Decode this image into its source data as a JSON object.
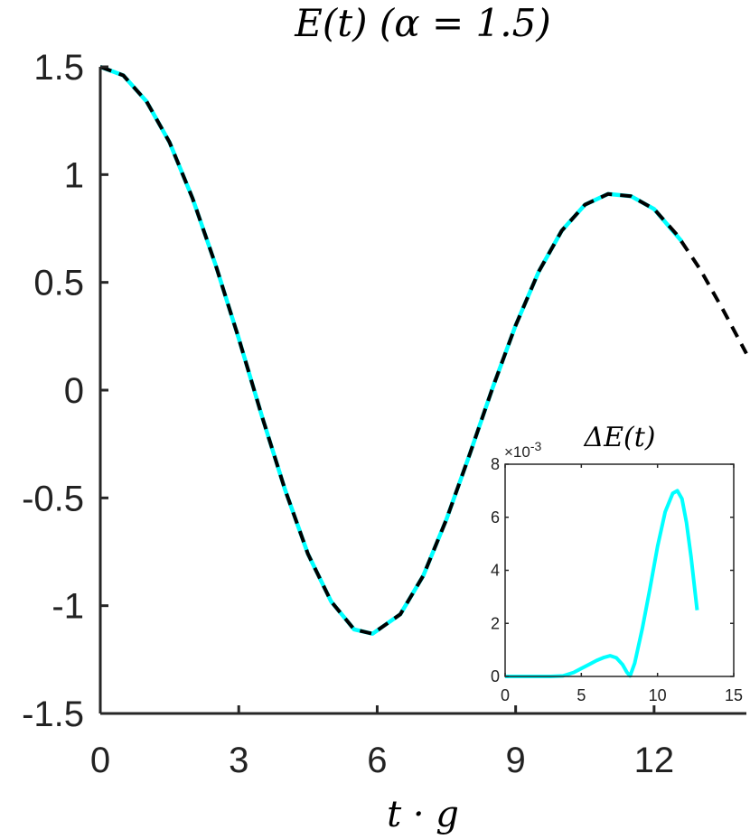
{
  "chart_data": [
    {
      "type": "line",
      "title": "E(t) (α = 1.5)",
      "xlabel": "t · g",
      "ylabel": "",
      "xlim": [
        0,
        14
      ],
      "ylim": [
        -1.5,
        1.5
      ],
      "xticks": [
        "0",
        "3",
        "6",
        "9",
        "12"
      ],
      "xtick_values": [
        0,
        3,
        6,
        9,
        12
      ],
      "yticks": [
        "1.5",
        "1",
        "0.5",
        "0",
        "-0.5",
        "-1",
        "-1.5"
      ],
      "ytick_values": [
        1.5,
        1,
        0.5,
        0,
        -0.5,
        -1,
        -1.5
      ],
      "grid": false,
      "series": [
        {
          "color": "#00ffff",
          "style": "solid",
          "x": [
            0,
            0.5,
            1,
            1.5,
            2,
            2.5,
            3,
            3.5,
            4,
            4.5,
            5,
            5.5,
            5.9,
            6.5,
            7,
            7.5,
            8,
            8.5,
            9,
            9.5,
            10,
            10.5,
            11,
            11.5,
            12,
            12.6
          ],
          "y": [
            1.5,
            1.46,
            1.34,
            1.15,
            0.89,
            0.58,
            0.24,
            -0.12,
            -0.46,
            -0.76,
            -0.98,
            -1.11,
            -1.13,
            -1.04,
            -0.86,
            -0.6,
            -0.3,
            0.01,
            0.3,
            0.55,
            0.74,
            0.86,
            0.91,
            0.9,
            0.84,
            0.69
          ]
        },
        {
          "color": "#000000",
          "style": "dashed",
          "x": [
            0,
            0.5,
            1,
            1.5,
            2,
            2.5,
            3,
            3.5,
            4,
            4.5,
            5,
            5.5,
            5.9,
            6.5,
            7,
            7.5,
            8,
            8.5,
            9,
            9.5,
            10,
            10.5,
            11,
            11.5,
            12,
            12.5,
            13,
            13.5,
            14
          ],
          "y": [
            1.5,
            1.46,
            1.34,
            1.15,
            0.89,
            0.58,
            0.24,
            -0.12,
            -0.46,
            -0.76,
            -0.98,
            -1.11,
            -1.13,
            -1.04,
            -0.86,
            -0.6,
            -0.3,
            0.01,
            0.3,
            0.55,
            0.74,
            0.86,
            0.91,
            0.9,
            0.84,
            0.72,
            0.56,
            0.37,
            0.17
          ]
        }
      ]
    },
    {
      "type": "line",
      "title": "ΔE(t)",
      "xlabel": "",
      "ylabel": "",
      "xlim": [
        0,
        15
      ],
      "ylim": [
        0,
        8
      ],
      "xticks": [
        "0",
        "5",
        "10",
        "15"
      ],
      "xtick_values": [
        0,
        5,
        10,
        15
      ],
      "yticks": [
        "0",
        "2",
        "4",
        "6",
        "8"
      ],
      "ytick_values": [
        0,
        2,
        4,
        6,
        8
      ],
      "y_exponent": "×10-3",
      "grid": false,
      "series": [
        {
          "color": "#00ffff",
          "style": "solid",
          "x": [
            0,
            1,
            2,
            3,
            3.8,
            4.5,
            5,
            5.5,
            6,
            6.5,
            6.9,
            7.3,
            7.7,
            8.0,
            8.2,
            8.5,
            9,
            9.5,
            10,
            10.5,
            11,
            11.3,
            11.6,
            11.9,
            12.2,
            12.5,
            12.6
          ],
          "y": [
            0,
            0,
            0,
            0,
            0.02,
            0.15,
            0.3,
            0.45,
            0.6,
            0.72,
            0.78,
            0.7,
            0.45,
            0.15,
            0.02,
            0.5,
            1.8,
            3.3,
            4.9,
            6.2,
            6.9,
            7.0,
            6.7,
            5.8,
            4.5,
            3.0,
            2.5
          ]
        }
      ]
    }
  ]
}
